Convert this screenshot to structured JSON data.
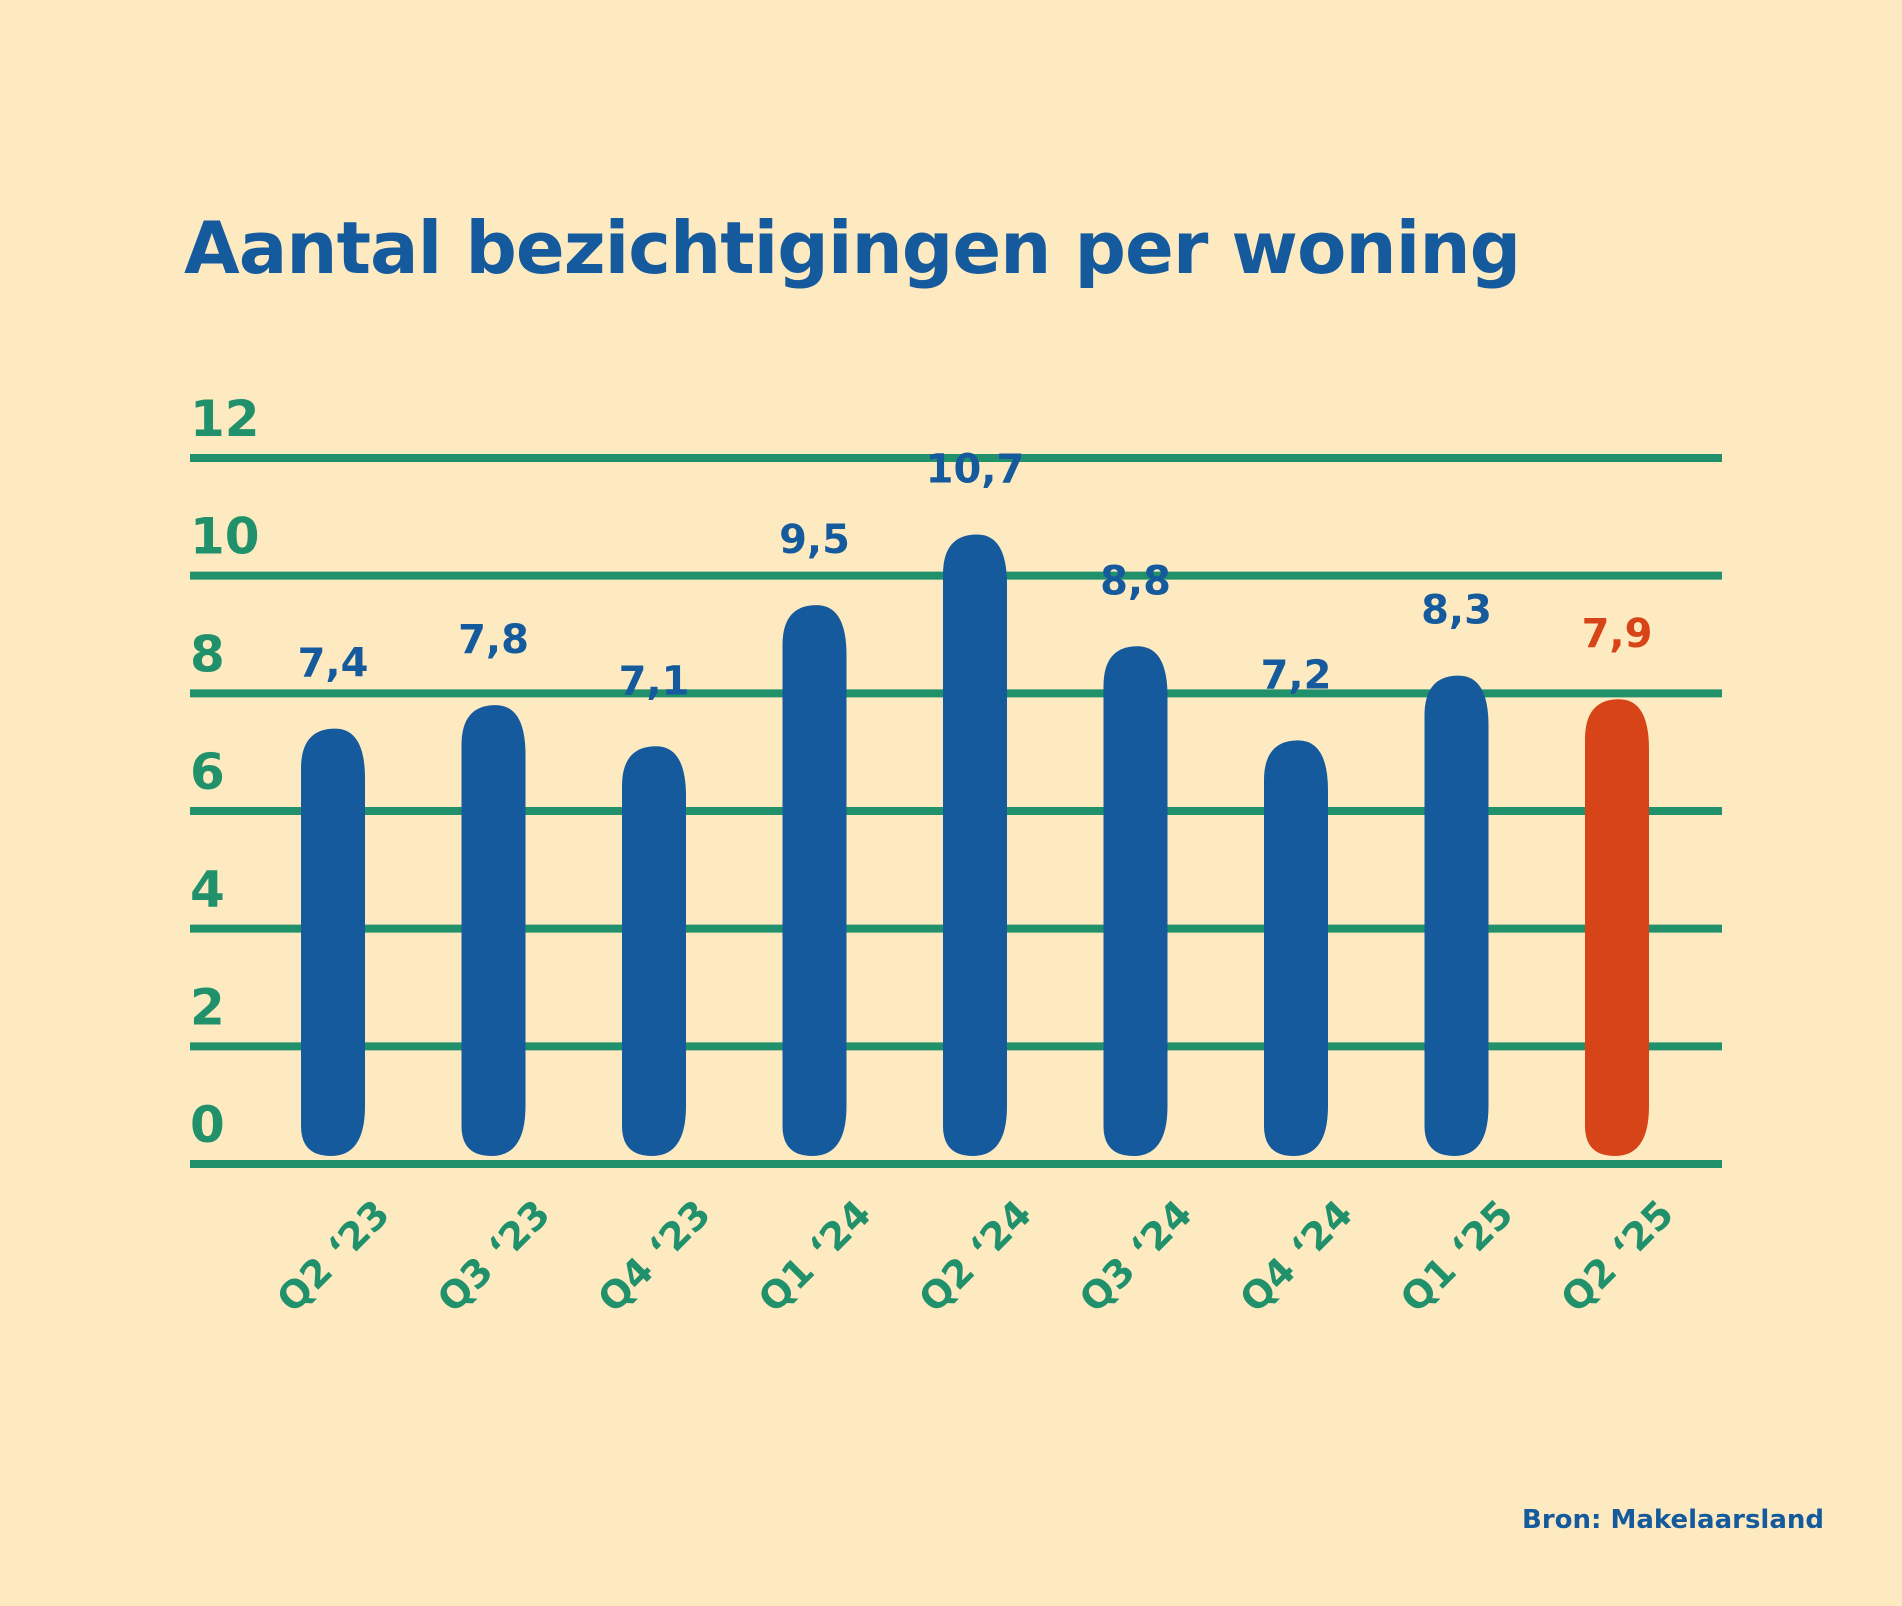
{
  "title": "Aantal bezichtigingen per woning",
  "source": "Bron: Makelaarsland",
  "colors": {
    "background": "#FEEAC1",
    "title": "#145A9C",
    "bar": "#145A9C",
    "highlight": "#D64417",
    "grid": "#21916C",
    "axis_text": "#21916C",
    "value_label": "#145A9C"
  },
  "chart_data": {
    "type": "bar",
    "title": "Aantal bezichtigingen per woning",
    "categories": [
      "Q2 ‘23",
      "Q3 ‘23",
      "Q4 ‘23",
      "Q1 ‘24",
      "Q2 ‘24",
      "Q3 ‘24",
      "Q4 ‘24",
      "Q1 ‘25",
      "Q2 ‘25"
    ],
    "values": [
      7.4,
      7.8,
      7.1,
      9.5,
      10.7,
      8.8,
      7.2,
      8.3,
      7.9
    ],
    "value_labels": [
      "7,4",
      "7,8",
      "7,1",
      "9,5",
      "10,7",
      "8,8",
      "7,2",
      "8,3",
      "7,9"
    ],
    "highlight_index": 8,
    "yticks": [
      0,
      2,
      4,
      6,
      8,
      10,
      12
    ],
    "ylim": [
      0,
      12
    ],
    "grid": true,
    "xlabel": "",
    "ylabel": ""
  }
}
